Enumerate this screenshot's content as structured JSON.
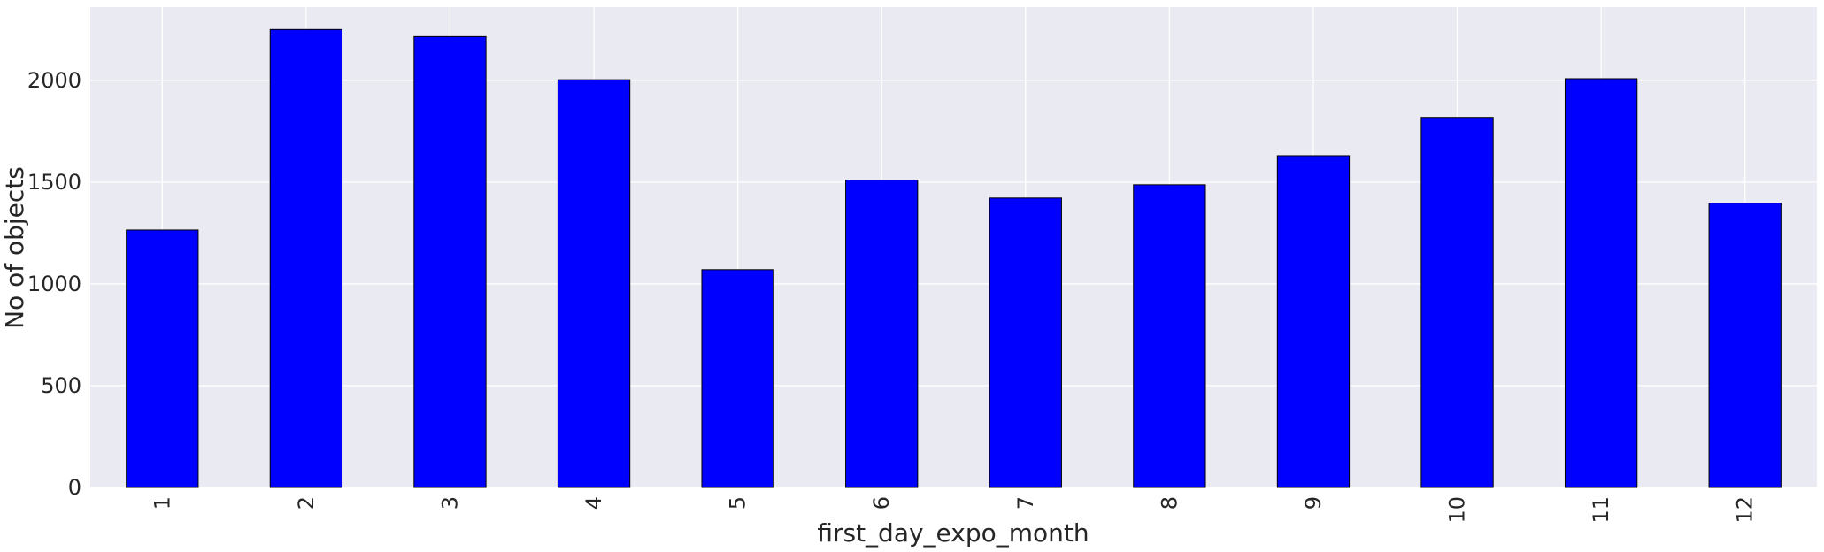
{
  "chart_data": {
    "type": "bar",
    "xlabel": "first_day_expo_month",
    "ylabel": "No of objects",
    "categories": [
      "1",
      "2",
      "3",
      "4",
      "5",
      "6",
      "7",
      "8",
      "9",
      "10",
      "11",
      "12"
    ],
    "values": [
      1265,
      2250,
      2215,
      2003,
      1070,
      1510,
      1422,
      1487,
      1630,
      1818,
      2008,
      1397
    ],
    "yticks": [
      0,
      500,
      1000,
      1500,
      2000
    ],
    "ylim": [
      0,
      2360
    ],
    "grid": true,
    "legend": "none",
    "colors": {
      "bar_fill": "#0000ff",
      "bar_edge": "#000000",
      "plot_background": "#eaeaf2",
      "grid": "#ffffff",
      "text": "#262626"
    }
  }
}
